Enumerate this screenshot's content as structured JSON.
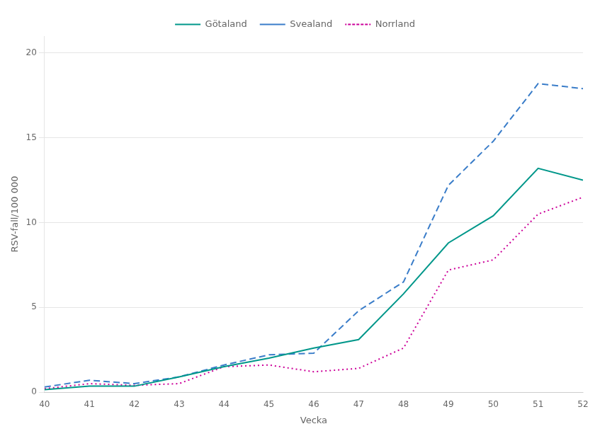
{
  "chart_data": {
    "type": "line",
    "x": [
      40,
      41,
      42,
      43,
      44,
      45,
      46,
      47,
      48,
      49,
      50,
      51,
      52
    ],
    "series": [
      {
        "name": "Götaland",
        "color": "#00978a",
        "line_style": "solid",
        "values": [
          0.15,
          0.35,
          0.35,
          0.9,
          1.5,
          2.0,
          2.6,
          3.1,
          5.8,
          8.8,
          10.4,
          13.2,
          12.5
        ]
      },
      {
        "name": "Svealand",
        "color": "#3a7dc9",
        "line_style": "dashed",
        "values": [
          0.3,
          0.7,
          0.5,
          0.9,
          1.6,
          2.2,
          2.3,
          4.8,
          6.5,
          12.2,
          14.8,
          18.2,
          17.9
        ]
      },
      {
        "name": "Norrland",
        "color": "#cc0099",
        "line_style": "dotted",
        "values": [
          0.2,
          0.5,
          0.4,
          0.5,
          1.5,
          1.6,
          1.2,
          1.4,
          2.6,
          7.2,
          7.8,
          10.5,
          11.5
        ]
      }
    ],
    "xlabel": "Vecka",
    "ylabel": "RSV-fall/100 000",
    "xlim": [
      40,
      52
    ],
    "xticks": [
      40,
      41,
      42,
      43,
      44,
      45,
      46,
      47,
      48,
      49,
      50,
      51,
      52
    ],
    "ylim": [
      0,
      21
    ],
    "yticks": [
      0,
      5,
      10,
      15,
      20
    ],
    "grid": "y",
    "legend": "top"
  }
}
